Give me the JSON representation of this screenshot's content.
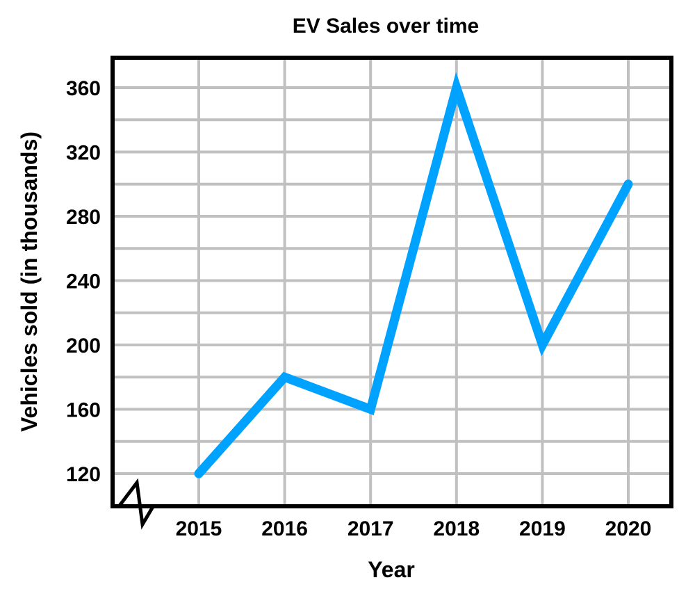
{
  "chart_data": {
    "type": "line",
    "title": "EV Sales over time",
    "xlabel": "Year",
    "ylabel": "Vehicles sold (in thousands)",
    "categories": [
      "2015",
      "2016",
      "2017",
      "2018",
      "2019",
      "2020"
    ],
    "series": [
      {
        "values": [
          120,
          180,
          160,
          360,
          200,
          300
        ]
      }
    ],
    "yticks": [
      120,
      160,
      200,
      240,
      280,
      320,
      360
    ],
    "ylim": [
      100,
      380
    ],
    "y_axis_break": true,
    "grid": true,
    "legend": "none",
    "colors": {
      "line": "#00A2FF",
      "grid": "#C0C0C0",
      "frame": "#000000"
    }
  }
}
